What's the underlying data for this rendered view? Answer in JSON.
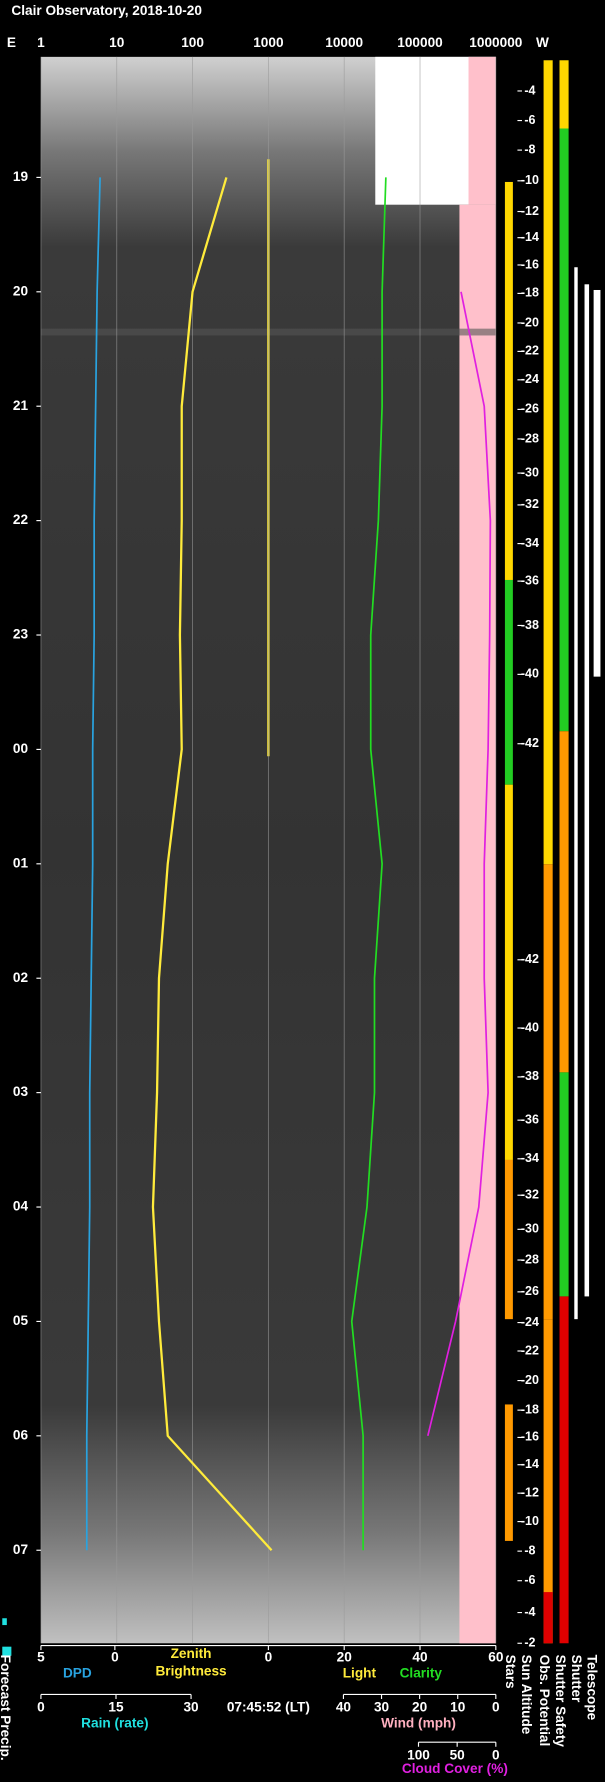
{
  "title": "Clair Observatory, 2018-10-20",
  "top_axis": {
    "left": "E",
    "right": "W",
    "ticks": [
      1,
      10,
      100,
      1000,
      10000,
      100000,
      1000000
    ]
  },
  "times": [
    "19",
    "20",
    "21",
    "22",
    "23",
    "00",
    "01",
    "02",
    "03",
    "04",
    "05",
    "06",
    "07"
  ],
  "sun_altitude": [
    -4,
    -6,
    -8,
    -10,
    -12,
    -14,
    -16,
    -18,
    -20,
    -22,
    -24,
    -26,
    -28,
    -30,
    -32,
    -34,
    -36,
    -38,
    -40,
    -42,
    -42,
    -40,
    -38,
    -36,
    -34,
    -32,
    -30,
    -28,
    -26,
    -24,
    -22,
    -20,
    -18,
    -16,
    -14,
    -12,
    -10,
    -8,
    -6,
    -4,
    -2
  ],
  "bottom": {
    "row1": {
      "dpd_ticks": [
        5,
        0
      ],
      "light_ticks": [
        0,
        20,
        40,
        60
      ],
      "dpd": "DPD",
      "zenith": [
        "Zenith",
        "Brightness"
      ],
      "light": "Light",
      "clarity": "Clarity"
    },
    "row2": {
      "rain_ticks": [
        0,
        15,
        30
      ],
      "time": "07:45:52 (LT)",
      "wind_ticks": [
        40,
        30,
        20,
        10,
        0
      ],
      "rain": "Rain (rate)",
      "wind": "Wind (mph)"
    },
    "row3": {
      "cloud_ticks": [
        100,
        50,
        0
      ],
      "cloud": "Cloud Cover (%)"
    }
  },
  "side_labels": [
    "Stars",
    "Sun Altitude",
    "Obs. Potential",
    "Shutter Safety",
    "Shutter",
    "Telescope"
  ],
  "forecast": "Forecast Precip.",
  "series": {
    "dpd": [
      1.0,
      1.2,
      1.3,
      1.4,
      1.4,
      1.5,
      1.5,
      1.6,
      1.7,
      1.7,
      1.8,
      1.9,
      1.9
    ],
    "brightness": [
      280,
      100,
      72,
      72,
      68,
      72,
      47,
      36,
      34,
      30,
      36,
      47,
      1100
    ],
    "clarity": [
      31,
      30,
      30,
      29,
      27,
      27,
      30,
      28,
      28,
      26,
      22,
      25,
      25
    ],
    "cloud": [
      null,
      45,
      15,
      7,
      8,
      10,
      15,
      15,
      10,
      22,
      52,
      88,
      null
    ]
  }
}
